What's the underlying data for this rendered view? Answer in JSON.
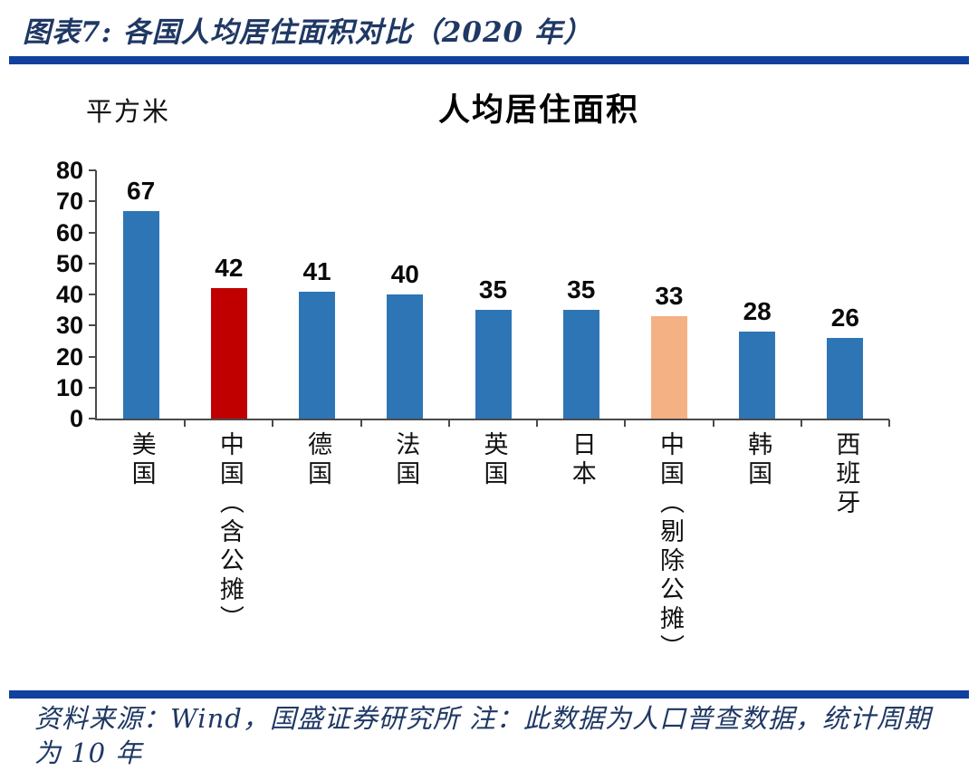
{
  "figure": {
    "caption": "图表7: 各国人均居住面积对比（2020 年）",
    "source_note": "资料来源：Wind，国盛证券研究所 注：此数据为人口普查数据，统计周期为 10 年"
  },
  "chart_data": {
    "type": "bar",
    "title": "人均居住面积",
    "unit_label": "平方米",
    "xlabel": "",
    "ylabel": "平方米",
    "categories": [
      "美国",
      "中国（含公摊）",
      "德国",
      "法国",
      "英国",
      "日本",
      "中国（剔除公摊）",
      "韩国",
      "西班牙"
    ],
    "values": [
      67,
      42,
      41,
      40,
      35,
      35,
      33,
      28,
      26
    ],
    "bar_colors": [
      "#2E75B6",
      "#C00000",
      "#2E75B6",
      "#2E75B6",
      "#2E75B6",
      "#2E75B6",
      "#F4B183",
      "#2E75B6",
      "#2E75B6"
    ],
    "ylim": [
      0,
      80
    ],
    "yticks": [
      0,
      10,
      20,
      30,
      40,
      50,
      60,
      70,
      80
    ],
    "grid": false,
    "legend_position": "none"
  },
  "colors": {
    "bar_blue": "#2E75B6",
    "bar_red": "#C00000",
    "bar_orange": "#F4B183",
    "navy_text": "#1F3864",
    "rule_blue": "#11409F",
    "axis_gray": "#4a4a4a"
  }
}
